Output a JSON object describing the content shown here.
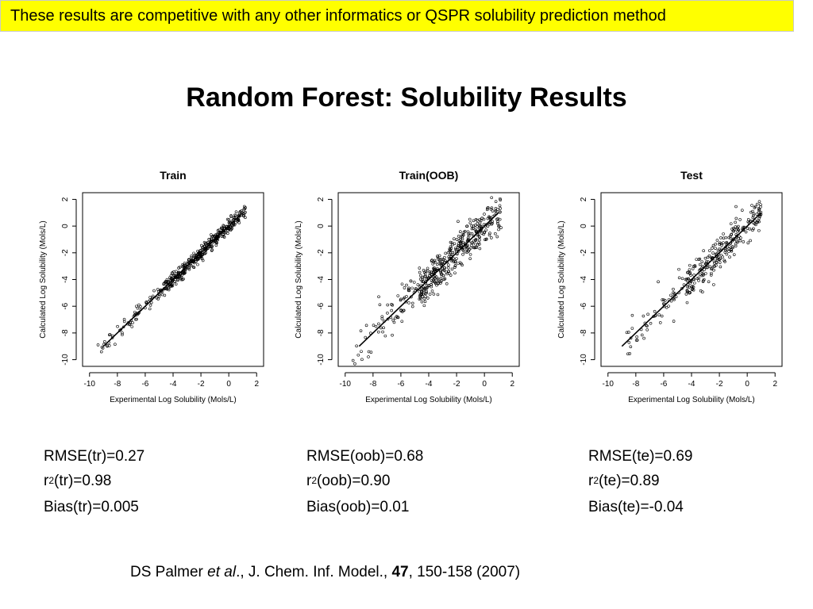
{
  "banner": "These results are competitive with any other informatics or QSPR solubility prediction method",
  "title": "Random Forest: Solubility Results",
  "chart_data": [
    {
      "type": "scatter",
      "title": "Train",
      "xlabel": "Experimental Log Solubility (Mols/L)",
      "ylabel": "Calculated Log Solubility (Mols/L)",
      "xlim": [
        -10.5,
        2.5
      ],
      "ylim": [
        -10.5,
        2.5
      ],
      "x_ticks": [
        "-10",
        "-8",
        "-6",
        "-4",
        "-2",
        "0",
        "2"
      ],
      "y_ticks": [
        "-10",
        "-8",
        "-6",
        "-4",
        "-2",
        "0",
        "2"
      ],
      "fit_line": [
        [
          -9,
          -9
        ],
        [
          1,
          1
        ]
      ],
      "n_points": 450,
      "x_range": [
        -9.5,
        1.2
      ],
      "scatter_sd": 0.27,
      "grid": false
    },
    {
      "type": "scatter",
      "title": "Train(OOB)",
      "xlabel": "Experimental Log Solubility (Mols/L)",
      "ylabel": "Calculated Log Solubility (Mols/L)",
      "xlim": [
        -10.5,
        2.5
      ],
      "ylim": [
        -10.5,
        2.5
      ],
      "x_ticks": [
        "-10",
        "-8",
        "-6",
        "-4",
        "-2",
        "0",
        "2"
      ],
      "y_ticks": [
        "-10",
        "-8",
        "-6",
        "-4",
        "-2",
        "0",
        "2"
      ],
      "fit_line": [
        [
          -9,
          -9
        ],
        [
          1,
          1
        ]
      ],
      "n_points": 450,
      "x_range": [
        -9.5,
        1.2
      ],
      "scatter_sd": 0.68,
      "grid": false
    },
    {
      "type": "scatter",
      "title": "Test",
      "xlabel": "Experimental Log Solubility (Mols/L)",
      "ylabel": "Calculated Log Solubility (Mols/L)",
      "xlim": [
        -10.5,
        2.5
      ],
      "ylim": [
        -10.5,
        2.5
      ],
      "x_ticks": [
        "-10",
        "-8",
        "-6",
        "-4",
        "-2",
        "0",
        "2"
      ],
      "y_ticks": [
        "-10",
        "-8",
        "-6",
        "-4",
        "-2",
        "0",
        "2"
      ],
      "fit_line": [
        [
          -9,
          -9
        ],
        [
          1,
          1
        ]
      ],
      "n_points": 300,
      "x_range": [
        -9,
        1
      ],
      "scatter_sd": 0.69,
      "grid": false
    }
  ],
  "stats": [
    {
      "rmse": "RMSE(tr)=0.27",
      "r2_prefix": "r",
      "r2_sup": "2",
      "r2_rest": "(tr)=0.98",
      "bias": "Bias(tr)=0.005"
    },
    {
      "rmse": "RMSE(oob)=0.68",
      "r2_prefix": "r",
      "r2_sup": "2",
      "r2_rest": "(oob)=0.90",
      "bias": "Bias(oob)=0.01"
    },
    {
      "rmse": "RMSE(te)=0.69",
      "r2_prefix": "r",
      "r2_sup": "2",
      "r2_rest": "(te)=0.89",
      "bias": "Bias(te)=-0.04"
    }
  ],
  "citation": {
    "authors": "DS Palmer ",
    "etal": "et al",
    "journal": "., J. Chem. Inf. Model., ",
    "volume": "47",
    "pages": ", 150-158 (2007)"
  }
}
